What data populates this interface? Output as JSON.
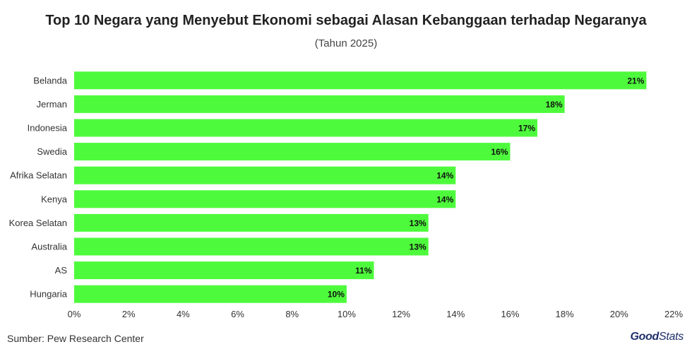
{
  "chart_data": {
    "type": "bar",
    "orientation": "horizontal",
    "title": "Top 10 Negara yang Menyebut Ekonomi sebagai Alasan Kebanggaan terhadap Negaranya",
    "subtitle": "(Tahun 2025)",
    "categories": [
      "Belanda",
      "Jerman",
      "Indonesia",
      "Swedia",
      "Afrika Selatan",
      "Kenya",
      "Korea Selatan",
      "Australia",
      "AS",
      "Hungaria"
    ],
    "values": [
      21,
      18,
      17,
      16,
      14,
      14,
      13,
      13,
      11,
      10
    ],
    "value_labels": [
      "21%",
      "18%",
      "17%",
      "16%",
      "14%",
      "14%",
      "13%",
      "13%",
      "11%",
      "10%"
    ],
    "xlim": [
      0,
      22
    ],
    "x_ticks": [
      "0%",
      "2%",
      "4%",
      "6%",
      "8%",
      "10%",
      "12%",
      "14%",
      "16%",
      "18%",
      "20%",
      "22%"
    ],
    "xlabel": "",
    "ylabel": "",
    "grid": false,
    "legend": "none",
    "bar_color": "#4efb3c"
  },
  "footer": {
    "source": "Sumber: Pew Research Center",
    "logo_good": "Good",
    "logo_stats": "Stats"
  }
}
